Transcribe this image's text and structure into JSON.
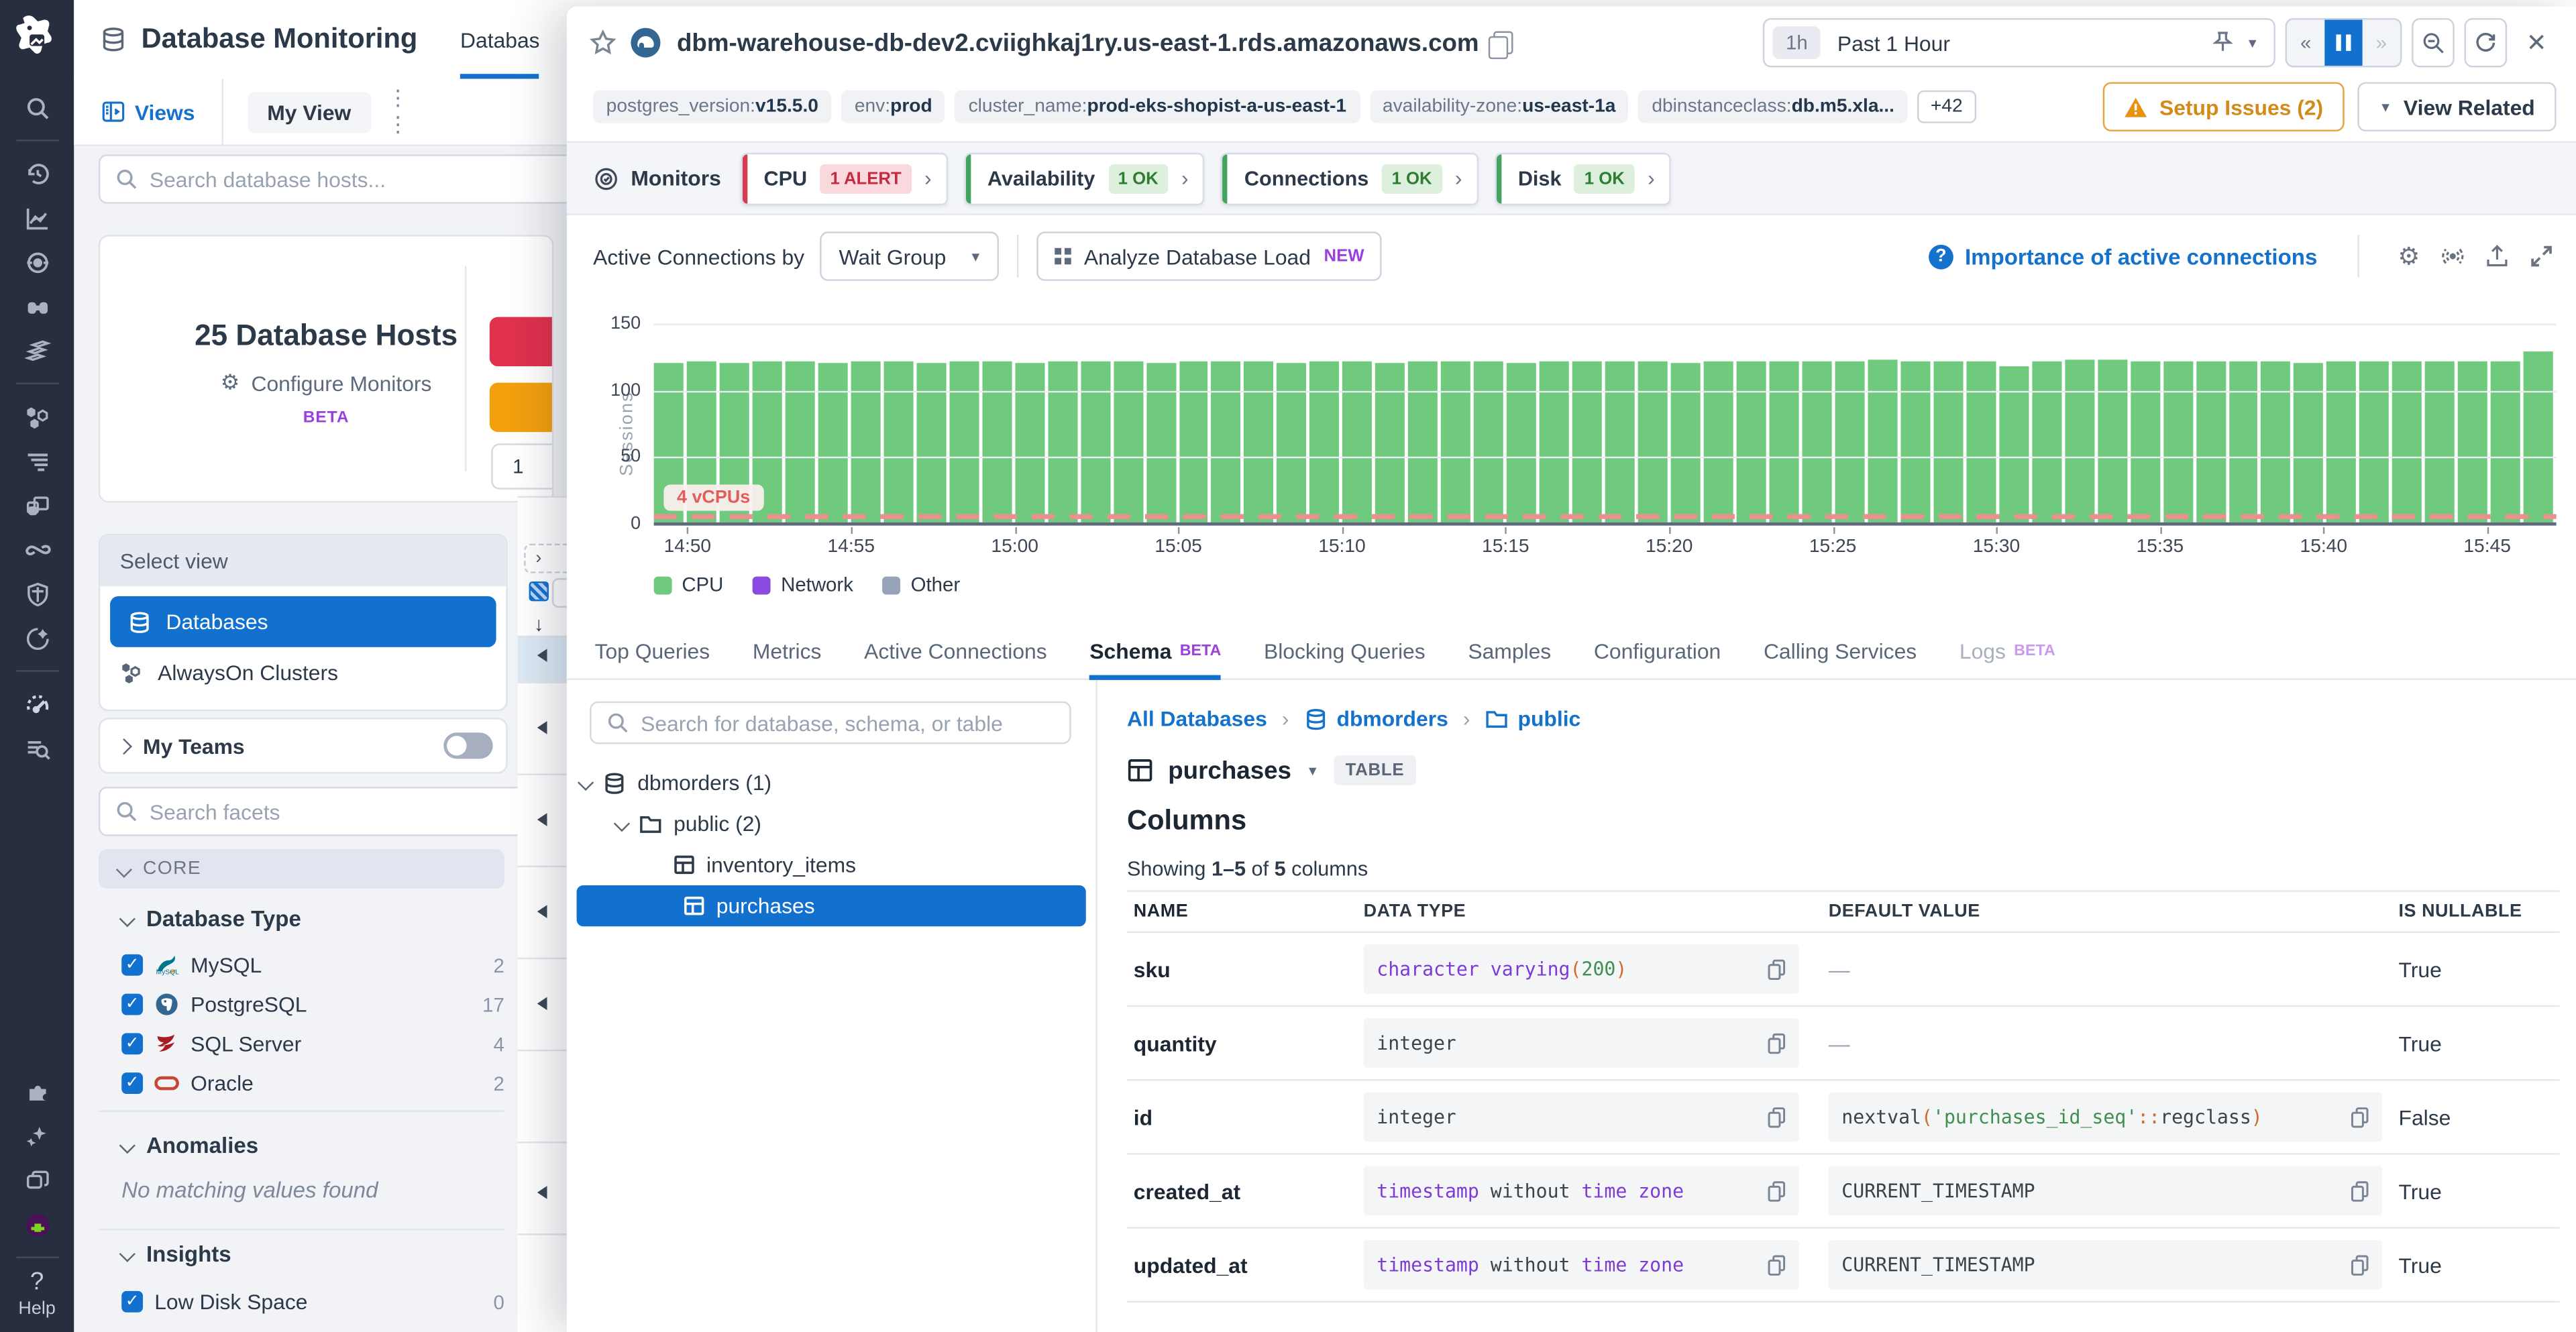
{
  "app": {
    "title": "Database Monitoring",
    "top_tab": "Databases",
    "views_label": "Views",
    "my_view_label": "My View",
    "host_search_placeholder": "Search database hosts...",
    "help_label": "Help",
    "sidenav_icons": [
      "datadog-logo",
      "search",
      "history",
      "metrics",
      "monitors",
      "watchdog",
      "dashboards",
      "infrastructure",
      "log-filter",
      "apm-windows",
      "synthetics-link",
      "security-shield",
      "service-compass",
      "dbm-speedometer",
      "query-insights",
      "integrations-puzzle",
      "ai-sparkles",
      "workspaces-copies",
      "user-avatar",
      "help"
    ]
  },
  "host_list": {
    "count_title": "25 Database Hosts",
    "configure_monitors": "Configure Monitors",
    "beta": "BETA",
    "partial_count": "1",
    "select_view_label": "Select view",
    "views": [
      {
        "label": "Databases",
        "selected": true,
        "icon": "database-icon"
      },
      {
        "label": "AlwaysOn Clusters",
        "selected": false,
        "icon": "cluster-icon"
      }
    ],
    "my_teams_label": "My Teams",
    "facet_search_placeholder": "Search facets",
    "core_label": "CORE",
    "database_type": {
      "title": "Database Type",
      "items": [
        {
          "label": "MySQL",
          "count": "2",
          "icon": "mysql-icon",
          "checked": true
        },
        {
          "label": "PostgreSQL",
          "count": "17",
          "icon": "postgresql-icon",
          "checked": true
        },
        {
          "label": "SQL Server",
          "count": "4",
          "icon": "sqlserver-icon",
          "checked": true
        },
        {
          "label": "Oracle",
          "count": "2",
          "icon": "oracle-icon",
          "checked": true
        }
      ]
    },
    "anomalies": {
      "title": "Anomalies",
      "empty_text": "No matching values found"
    },
    "insights": {
      "title": "Insights",
      "items": [
        {
          "label": "Low Disk Space",
          "count": "0",
          "checked": true
        }
      ]
    }
  },
  "panel": {
    "hostname": "dbm-warehouse-db-dev2.cviighkaj1ry.us-east-1.rds.amazonaws.com",
    "time": {
      "range_chip": "1h",
      "range_label": "Past 1 Hour"
    },
    "tags": [
      {
        "key": "postgres_version",
        "value": "v15.5.0"
      },
      {
        "key": "env",
        "value": "prod"
      },
      {
        "key": "cluster_name",
        "value": "prod-eks-shopist-a-us-east-1"
      },
      {
        "key": "availability-zone",
        "value": "us-east-1a"
      },
      {
        "key": "dbinstanceclass",
        "value": "db.m5.xla..."
      }
    ],
    "tags_more": "+42",
    "setup_issues_label": "Setup Issues (2)",
    "view_related_label": "View Related",
    "monitors": {
      "label": "Monitors",
      "cards": [
        {
          "name": "CPU",
          "badge": "1 ALERT",
          "status": "alert"
        },
        {
          "name": "Availability",
          "badge": "1 OK",
          "status": "ok"
        },
        {
          "name": "Connections",
          "badge": "1 OK",
          "status": "ok"
        },
        {
          "name": "Disk",
          "badge": "1 OK",
          "status": "ok"
        }
      ]
    },
    "connections_bar": {
      "label": "Active Connections by",
      "select_value": "Wait Group",
      "analyze_label": "Analyze Database Load",
      "new_badge": "NEW",
      "importance_link": "Importance of active connections"
    },
    "tabs": [
      {
        "label": "Top Queries"
      },
      {
        "label": "Metrics"
      },
      {
        "label": "Active Connections"
      },
      {
        "label": "Schema",
        "badge": "BETA",
        "active": true
      },
      {
        "label": "Blocking Queries"
      },
      {
        "label": "Samples"
      },
      {
        "label": "Configuration"
      },
      {
        "label": "Calling Services"
      },
      {
        "label": "Logs",
        "badge": "BETA",
        "muted": true
      }
    ]
  },
  "chart_data": {
    "type": "bar",
    "title": "Active Connections by Wait Group",
    "xlabel": "",
    "ylabel": "Sessions",
    "ylim": [
      0,
      150
    ],
    "yticks": [
      0,
      50,
      100,
      150
    ],
    "grid": true,
    "legend_position": "bottom",
    "x_tick_labels": [
      "14:50",
      "14:55",
      "15:00",
      "15:05",
      "15:10",
      "15:15",
      "15:20",
      "15:25",
      "15:30",
      "15:35",
      "15:40",
      "15:45"
    ],
    "series": [
      {
        "name": "CPU",
        "color": "#6fca7d",
        "values": [
          119,
          120,
          119,
          120,
          120,
          119,
          120,
          120,
          119,
          120,
          120,
          119,
          120,
          121,
          120,
          119,
          120,
          120,
          120,
          119,
          120,
          120,
          119,
          120,
          120,
          120,
          119,
          120,
          120,
          120,
          120,
          119,
          120,
          120,
          120,
          120,
          120,
          122,
          120,
          120,
          120,
          117,
          120,
          122,
          122,
          120,
          120,
          120,
          121,
          120,
          119,
          120,
          120,
          120,
          120,
          120,
          120,
          128
        ]
      }
    ],
    "legend": [
      {
        "label": "CPU",
        "color": "#6fca7d"
      },
      {
        "label": "Network",
        "color": "#8a4be0"
      },
      {
        "label": "Other",
        "color": "#98a2b8"
      }
    ],
    "threshold": {
      "value": 4,
      "label": "4 vCPUs",
      "color": "#e25c5c"
    }
  },
  "schema": {
    "search_placeholder": "Search for database, schema, or table",
    "tree": [
      {
        "label": "dbmorders (1)",
        "type": "database",
        "level": 0,
        "expanded": true
      },
      {
        "label": "public (2)",
        "type": "folder",
        "level": 1,
        "expanded": true
      },
      {
        "label": "inventory_items",
        "type": "table",
        "level": 2,
        "selected": false
      },
      {
        "label": "purchases",
        "type": "table",
        "level": 2,
        "selected": true
      }
    ],
    "breadcrumb": [
      {
        "label": "All Databases",
        "icon": null
      },
      {
        "label": "dbmorders",
        "icon": "database-icon"
      },
      {
        "label": "public",
        "icon": "folder-icon"
      }
    ],
    "table_name": "purchases",
    "table_badge": "TABLE",
    "columns_heading": "Columns",
    "showing": {
      "prefix": "Showing ",
      "range": "1–5",
      "mid": " of ",
      "total": "5",
      "suffix": " columns"
    },
    "columns_table": {
      "headers": [
        "NAME",
        "DATA TYPE",
        "DEFAULT VALUE",
        "IS NULLABLE"
      ],
      "rows": [
        {
          "name": "sku",
          "data_type": [
            [
              "character varying",
              "t-kw"
            ],
            [
              "(",
              "t-or"
            ],
            [
              "200",
              "t-num"
            ],
            [
              ")",
              "t-or"
            ]
          ],
          "default_tokens": null,
          "default_dash": "—",
          "nullable": "True"
        },
        {
          "name": "quantity",
          "data_type": [
            [
              "integer",
              "t-plain"
            ]
          ],
          "default_tokens": null,
          "default_dash": "—",
          "nullable": "True"
        },
        {
          "name": "id",
          "data_type": [
            [
              "integer",
              "t-plain"
            ]
          ],
          "default_tokens": [
            [
              "nextval",
              "t-plain"
            ],
            [
              "(",
              "t-or"
            ],
            [
              "'purchases_id_seq'",
              "t-str"
            ],
            [
              "::",
              "t-or"
            ],
            [
              "regclass",
              "t-plain"
            ],
            [
              ")",
              "t-or"
            ]
          ],
          "default_dash": null,
          "nullable": "False"
        },
        {
          "name": "created_at",
          "data_type": [
            [
              "timestamp",
              "t-kw"
            ],
            [
              " without ",
              "t-plain"
            ],
            [
              "time zone",
              "t-kw"
            ]
          ],
          "default_tokens": [
            [
              "CURRENT_TIMESTAMP",
              "t-plain"
            ]
          ],
          "default_dash": null,
          "nullable": "True"
        },
        {
          "name": "updated_at",
          "data_type": [
            [
              "timestamp",
              "t-kw"
            ],
            [
              " without ",
              "t-plain"
            ],
            [
              "time zone",
              "t-kw"
            ]
          ],
          "default_tokens": [
            [
              "CURRENT_TIMESTAMP",
              "t-plain"
            ]
          ],
          "default_dash": null,
          "nullable": "True"
        }
      ]
    }
  }
}
